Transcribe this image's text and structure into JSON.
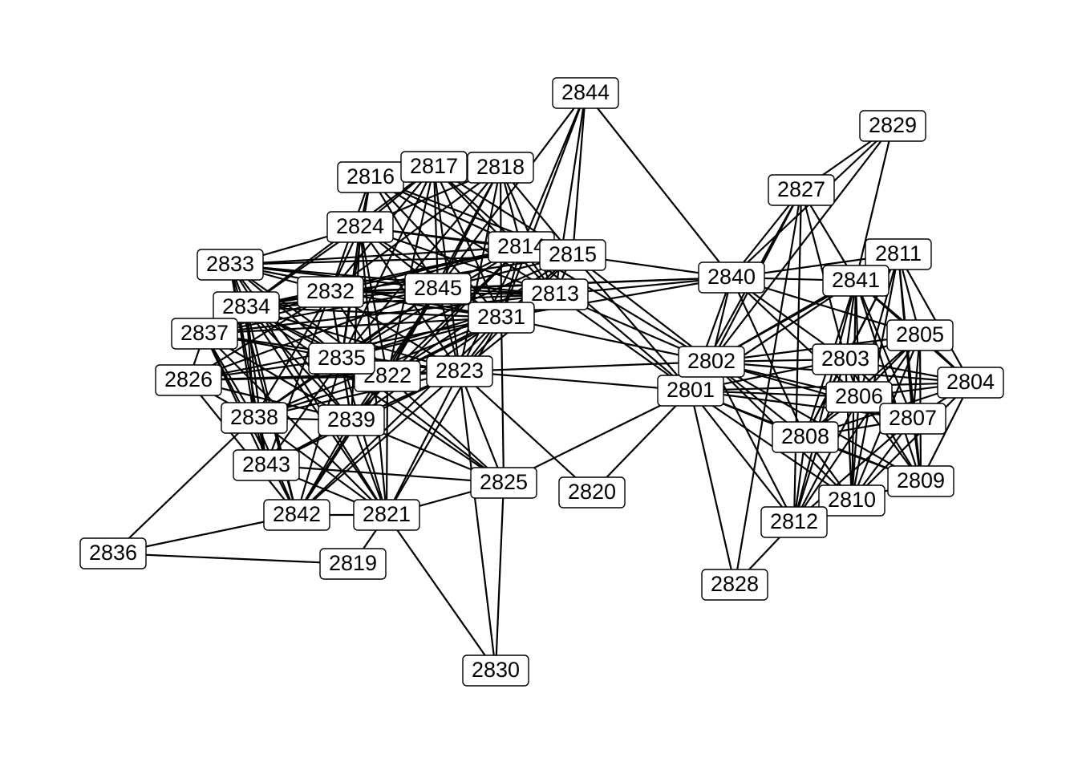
{
  "graph": {
    "nodes": [
      "2801",
      "2802",
      "2803",
      "2804",
      "2805",
      "2806",
      "2807",
      "2808",
      "2809",
      "2810",
      "2811",
      "2812",
      "2813",
      "2814",
      "2815",
      "2816",
      "2817",
      "2818",
      "2819",
      "2820",
      "2821",
      "2822",
      "2823",
      "2824",
      "2825",
      "2826",
      "2827",
      "2828",
      "2829",
      "2830",
      "2831",
      "2832",
      "2833",
      "2834",
      "2835",
      "2836",
      "2837",
      "2838",
      "2839",
      "2840",
      "2841",
      "2842",
      "2843",
      "2844",
      "2845"
    ],
    "edges": [
      [
        "2844",
        "2840"
      ],
      [
        "2844",
        "2814"
      ],
      [
        "2844",
        "2815"
      ],
      [
        "2844",
        "2813"
      ],
      [
        "2844",
        "2845"
      ],
      [
        "2844",
        "2831"
      ],
      [
        "2829",
        "2827"
      ],
      [
        "2829",
        "2840"
      ],
      [
        "2829",
        "2841"
      ],
      [
        "2829",
        "2802"
      ],
      [
        "2827",
        "2840"
      ],
      [
        "2827",
        "2802"
      ],
      [
        "2827",
        "2812"
      ],
      [
        "2827",
        "2828"
      ],
      [
        "2827",
        "2803"
      ],
      [
        "2827",
        "2841"
      ],
      [
        "2827",
        "2801"
      ],
      [
        "2840",
        "2813"
      ],
      [
        "2840",
        "2815"
      ],
      [
        "2840",
        "2845"
      ],
      [
        "2840",
        "2811"
      ],
      [
        "2840",
        "2841"
      ],
      [
        "2840",
        "2802"
      ],
      [
        "2840",
        "2801"
      ],
      [
        "2840",
        "2803"
      ],
      [
        "2840",
        "2805"
      ],
      [
        "2840",
        "2808"
      ],
      [
        "2840",
        "2806"
      ],
      [
        "2840",
        "2832"
      ],
      [
        "2840",
        "2831"
      ],
      [
        "2811",
        "2841"
      ],
      [
        "2811",
        "2805"
      ],
      [
        "2811",
        "2804"
      ],
      [
        "2811",
        "2807"
      ],
      [
        "2811",
        "2803"
      ],
      [
        "2811",
        "2806"
      ],
      [
        "2811",
        "2809"
      ],
      [
        "2811",
        "2810"
      ],
      [
        "2811",
        "2808"
      ],
      [
        "2811",
        "2802"
      ],
      [
        "2841",
        "2802"
      ],
      [
        "2841",
        "2801"
      ],
      [
        "2841",
        "2803"
      ],
      [
        "2841",
        "2805"
      ],
      [
        "2841",
        "2806"
      ],
      [
        "2841",
        "2807"
      ],
      [
        "2841",
        "2808"
      ],
      [
        "2841",
        "2810"
      ],
      [
        "2841",
        "2812"
      ],
      [
        "2841",
        "2804"
      ],
      [
        "2841",
        "2809"
      ],
      [
        "2802",
        "2801"
      ],
      [
        "2802",
        "2803"
      ],
      [
        "2802",
        "2805"
      ],
      [
        "2802",
        "2806"
      ],
      [
        "2802",
        "2807"
      ],
      [
        "2802",
        "2808"
      ],
      [
        "2802",
        "2810"
      ],
      [
        "2802",
        "2812"
      ],
      [
        "2802",
        "2804"
      ],
      [
        "2802",
        "2809"
      ],
      [
        "2802",
        "2813"
      ],
      [
        "2802",
        "2815"
      ],
      [
        "2802",
        "2831"
      ],
      [
        "2802",
        "2823"
      ],
      [
        "2802",
        "2814"
      ],
      [
        "2801",
        "2803"
      ],
      [
        "2801",
        "2806"
      ],
      [
        "2801",
        "2807"
      ],
      [
        "2801",
        "2808"
      ],
      [
        "2801",
        "2810"
      ],
      [
        "2801",
        "2812"
      ],
      [
        "2801",
        "2828"
      ],
      [
        "2801",
        "2804"
      ],
      [
        "2801",
        "2809"
      ],
      [
        "2801",
        "2820"
      ],
      [
        "2801",
        "2825"
      ],
      [
        "2801",
        "2823"
      ],
      [
        "2801",
        "2815"
      ],
      [
        "2801",
        "2813"
      ],
      [
        "2801",
        "2814"
      ],
      [
        "2803",
        "2805"
      ],
      [
        "2803",
        "2804"
      ],
      [
        "2803",
        "2806"
      ],
      [
        "2803",
        "2807"
      ],
      [
        "2803",
        "2808"
      ],
      [
        "2803",
        "2809"
      ],
      [
        "2803",
        "2810"
      ],
      [
        "2803",
        "2812"
      ],
      [
        "2805",
        "2804"
      ],
      [
        "2805",
        "2806"
      ],
      [
        "2805",
        "2807"
      ],
      [
        "2805",
        "2808"
      ],
      [
        "2805",
        "2809"
      ],
      [
        "2805",
        "2810"
      ],
      [
        "2805",
        "2812"
      ],
      [
        "2804",
        "2806"
      ],
      [
        "2804",
        "2807"
      ],
      [
        "2804",
        "2808"
      ],
      [
        "2804",
        "2809"
      ],
      [
        "2804",
        "2810"
      ],
      [
        "2806",
        "2807"
      ],
      [
        "2806",
        "2808"
      ],
      [
        "2806",
        "2809"
      ],
      [
        "2806",
        "2810"
      ],
      [
        "2806",
        "2812"
      ],
      [
        "2807",
        "2808"
      ],
      [
        "2807",
        "2809"
      ],
      [
        "2807",
        "2810"
      ],
      [
        "2807",
        "2812"
      ],
      [
        "2808",
        "2809"
      ],
      [
        "2808",
        "2810"
      ],
      [
        "2808",
        "2812"
      ],
      [
        "2810",
        "2812"
      ],
      [
        "2809",
        "2810"
      ],
      [
        "2828",
        "2812"
      ],
      [
        "2816",
        "2824"
      ],
      [
        "2816",
        "2845"
      ],
      [
        "2816",
        "2814"
      ],
      [
        "2816",
        "2813"
      ],
      [
        "2816",
        "2832"
      ],
      [
        "2816",
        "2835"
      ],
      [
        "2816",
        "2831"
      ],
      [
        "2816",
        "2815"
      ],
      [
        "2817",
        "2824"
      ],
      [
        "2817",
        "2845"
      ],
      [
        "2817",
        "2814"
      ],
      [
        "2817",
        "2815"
      ],
      [
        "2817",
        "2813"
      ],
      [
        "2817",
        "2832"
      ],
      [
        "2817",
        "2831"
      ],
      [
        "2817",
        "2835"
      ],
      [
        "2817",
        "2822"
      ],
      [
        "2817",
        "2823"
      ],
      [
        "2817",
        "2834"
      ],
      [
        "2818",
        "2824"
      ],
      [
        "2818",
        "2845"
      ],
      [
        "2818",
        "2814"
      ],
      [
        "2818",
        "2815"
      ],
      [
        "2818",
        "2813"
      ],
      [
        "2818",
        "2831"
      ],
      [
        "2818",
        "2832"
      ],
      [
        "2818",
        "2823"
      ],
      [
        "2818",
        "2822"
      ],
      [
        "2818",
        "2835"
      ],
      [
        "2824",
        "2833"
      ],
      [
        "2824",
        "2845"
      ],
      [
        "2824",
        "2814"
      ],
      [
        "2824",
        "2815"
      ],
      [
        "2824",
        "2813"
      ],
      [
        "2824",
        "2832"
      ],
      [
        "2824",
        "2831"
      ],
      [
        "2824",
        "2835"
      ],
      [
        "2824",
        "2822"
      ],
      [
        "2824",
        "2823"
      ],
      [
        "2824",
        "2834"
      ],
      [
        "2824",
        "2839"
      ],
      [
        "2824",
        "2821"
      ],
      [
        "2833",
        "2814"
      ],
      [
        "2833",
        "2845"
      ],
      [
        "2833",
        "2815"
      ],
      [
        "2833",
        "2832"
      ],
      [
        "2833",
        "2834"
      ],
      [
        "2833",
        "2835"
      ],
      [
        "2833",
        "2838"
      ],
      [
        "2833",
        "2839"
      ],
      [
        "2833",
        "2822"
      ],
      [
        "2833",
        "2821"
      ],
      [
        "2833",
        "2842"
      ],
      [
        "2833",
        "2843"
      ],
      [
        "2833",
        "2813"
      ],
      [
        "2833",
        "2831"
      ],
      [
        "2832",
        "2845"
      ],
      [
        "2832",
        "2814"
      ],
      [
        "2832",
        "2813"
      ],
      [
        "2832",
        "2831"
      ],
      [
        "2832",
        "2834"
      ],
      [
        "2832",
        "2837"
      ],
      [
        "2832",
        "2835"
      ],
      [
        "2832",
        "2826"
      ],
      [
        "2832",
        "2838"
      ],
      [
        "2832",
        "2839"
      ],
      [
        "2832",
        "2822"
      ],
      [
        "2832",
        "2823"
      ],
      [
        "2832",
        "2843"
      ],
      [
        "2845",
        "2814"
      ],
      [
        "2845",
        "2815"
      ],
      [
        "2845",
        "2813"
      ],
      [
        "2845",
        "2831"
      ],
      [
        "2845",
        "2834"
      ],
      [
        "2845",
        "2837"
      ],
      [
        "2845",
        "2835"
      ],
      [
        "2845",
        "2826"
      ],
      [
        "2845",
        "2838"
      ],
      [
        "2845",
        "2839"
      ],
      [
        "2845",
        "2822"
      ],
      [
        "2845",
        "2823"
      ],
      [
        "2845",
        "2842"
      ],
      [
        "2814",
        "2815"
      ],
      [
        "2814",
        "2813"
      ],
      [
        "2814",
        "2831"
      ],
      [
        "2814",
        "2834"
      ],
      [
        "2814",
        "2835"
      ],
      [
        "2814",
        "2839"
      ],
      [
        "2814",
        "2822"
      ],
      [
        "2814",
        "2823"
      ],
      [
        "2814",
        "2837"
      ],
      [
        "2815",
        "2813"
      ],
      [
        "2815",
        "2831"
      ],
      [
        "2815",
        "2823"
      ],
      [
        "2815",
        "2822"
      ],
      [
        "2815",
        "2834"
      ],
      [
        "2815",
        "2835"
      ],
      [
        "2813",
        "2831"
      ],
      [
        "2813",
        "2834"
      ],
      [
        "2813",
        "2837"
      ],
      [
        "2813",
        "2835"
      ],
      [
        "2813",
        "2823"
      ],
      [
        "2813",
        "2822"
      ],
      [
        "2831",
        "2834"
      ],
      [
        "2831",
        "2837"
      ],
      [
        "2831",
        "2835"
      ],
      [
        "2831",
        "2826"
      ],
      [
        "2831",
        "2838"
      ],
      [
        "2831",
        "2839"
      ],
      [
        "2831",
        "2822"
      ],
      [
        "2831",
        "2823"
      ],
      [
        "2831",
        "2821"
      ],
      [
        "2831",
        "2842"
      ],
      [
        "2834",
        "2837"
      ],
      [
        "2834",
        "2835"
      ],
      [
        "2834",
        "2838"
      ],
      [
        "2834",
        "2839"
      ],
      [
        "2834",
        "2822"
      ],
      [
        "2834",
        "2823"
      ],
      [
        "2834",
        "2843"
      ],
      [
        "2834",
        "2842"
      ],
      [
        "2834",
        "2821"
      ],
      [
        "2834",
        "2825"
      ],
      [
        "2837",
        "2835"
      ],
      [
        "2837",
        "2826"
      ],
      [
        "2837",
        "2838"
      ],
      [
        "2837",
        "2839"
      ],
      [
        "2837",
        "2843"
      ],
      [
        "2837",
        "2842"
      ],
      [
        "2837",
        "2821"
      ],
      [
        "2837",
        "2823"
      ],
      [
        "2835",
        "2826"
      ],
      [
        "2835",
        "2822"
      ],
      [
        "2835",
        "2823"
      ],
      [
        "2835",
        "2838"
      ],
      [
        "2835",
        "2839"
      ],
      [
        "2835",
        "2843"
      ],
      [
        "2835",
        "2842"
      ],
      [
        "2835",
        "2821"
      ],
      [
        "2835",
        "2825"
      ],
      [
        "2826",
        "2838"
      ],
      [
        "2826",
        "2822"
      ],
      [
        "2826",
        "2823"
      ],
      [
        "2826",
        "2839"
      ],
      [
        "2826",
        "2842"
      ],
      [
        "2822",
        "2823"
      ],
      [
        "2822",
        "2838"
      ],
      [
        "2822",
        "2839"
      ],
      [
        "2822",
        "2821"
      ],
      [
        "2822",
        "2842"
      ],
      [
        "2822",
        "2825"
      ],
      [
        "2823",
        "2838"
      ],
      [
        "2823",
        "2839"
      ],
      [
        "2823",
        "2821"
      ],
      [
        "2823",
        "2825"
      ],
      [
        "2823",
        "2820"
      ],
      [
        "2823",
        "2830"
      ],
      [
        "2823",
        "2842"
      ],
      [
        "2823",
        "2843"
      ],
      [
        "2838",
        "2839"
      ],
      [
        "2838",
        "2843"
      ],
      [
        "2838",
        "2842"
      ],
      [
        "2838",
        "2836"
      ],
      [
        "2838",
        "2821"
      ],
      [
        "2839",
        "2843"
      ],
      [
        "2839",
        "2842"
      ],
      [
        "2839",
        "2821"
      ],
      [
        "2839",
        "2825"
      ],
      [
        "2843",
        "2821"
      ],
      [
        "2843",
        "2825"
      ],
      [
        "2842",
        "2836"
      ],
      [
        "2842",
        "2821"
      ],
      [
        "2836",
        "2819"
      ],
      [
        "2819",
        "2821"
      ],
      [
        "2821",
        "2825"
      ],
      [
        "2821",
        "2830"
      ],
      [
        "2825",
        "2830"
      ],
      [
        "2825",
        "2831"
      ]
    ]
  }
}
